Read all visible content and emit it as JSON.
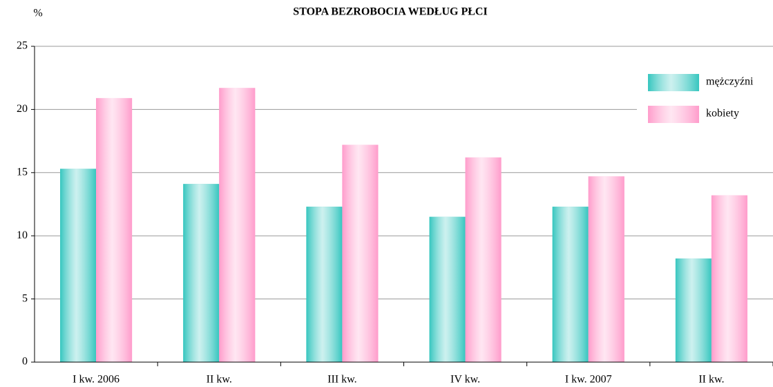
{
  "chart_data": {
    "type": "bar",
    "title": "STOPA BEZROBOCIA WEDŁUG PŁCI",
    "y_label": "%",
    "categories": [
      "I kw. 2006",
      "II kw.",
      "III kw.",
      "IV kw.",
      "I kw. 2007",
      "II kw."
    ],
    "series": [
      {
        "name": "mężczyźni",
        "color": "#36c6bf",
        "values": [
          15.3,
          14.1,
          12.3,
          11.5,
          12.3,
          8.2
        ]
      },
      {
        "name": "kobiety",
        "color": "#ff9ccb",
        "values": [
          20.9,
          21.7,
          17.2,
          16.2,
          14.7,
          13.2
        ]
      }
    ],
    "ylim": [
      0,
      25
    ],
    "yticks": [
      0,
      5,
      10,
      15,
      20,
      25
    ],
    "grid": true,
    "legend": "top-right"
  }
}
